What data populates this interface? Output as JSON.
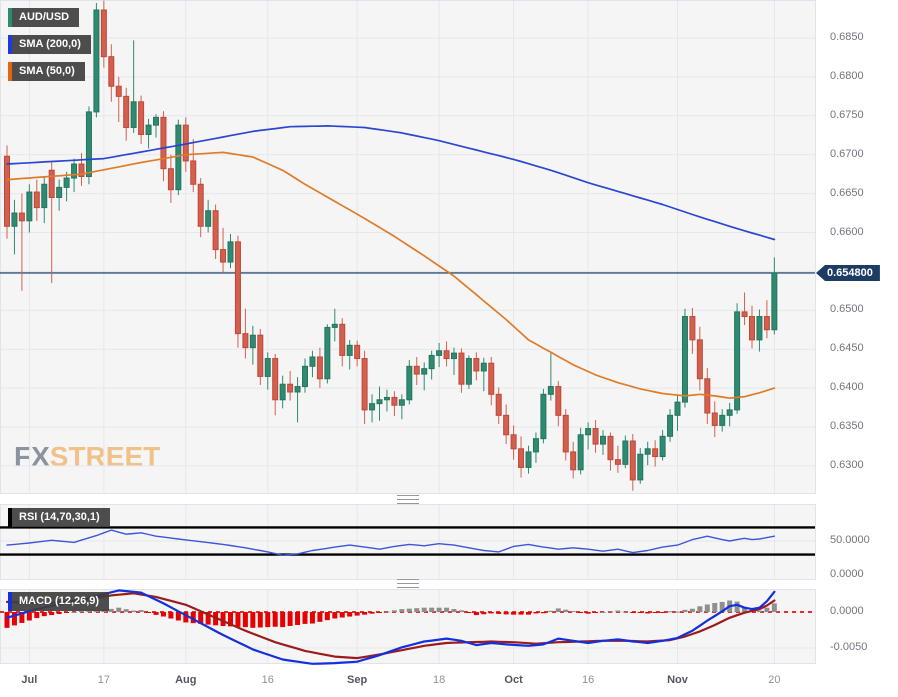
{
  "legend": {
    "symbol": "AUD/USD",
    "sma200": "SMA (200,0)",
    "sma50": "SMA (50,0)"
  },
  "rsi_label": "RSI (14,70,30,1)",
  "macd_label": "MACD (12,26,9)",
  "price_badge_label": "0.654800",
  "watermark": {
    "fx": "FX",
    "street": "STREET"
  },
  "colors": {
    "panel_bg": "#f5f5f6",
    "panel_border": "#e0e3e9",
    "grid": "#e5e7ea",
    "candle_up": "#2e8a70",
    "candle_up_border": "#25755f",
    "candle_down": "#d2604e",
    "candle_down_border": "#c24738",
    "sma200": "#2b46cf",
    "sma50": "#e07b28",
    "price_line": "#2a5076",
    "price_badge_bg": "#1d3c64",
    "rsi_line": "#3d55d8",
    "rsi_levels": "#000000",
    "macd_line": "#1330dd",
    "macd_signal": "#9c1b1b",
    "hist_positive": "#8f8f8f",
    "hist_negative": "#e80000",
    "zero_dash": "#e03030",
    "axis_text": "#70757e",
    "month_text": "#53575d",
    "watermark_fx": "#8d939e",
    "watermark_street": "#f0c189"
  },
  "chart_data": {
    "type": "candlestick",
    "symbol": "AUD/USD",
    "x_ticks": [
      [
        "Jul",
        3,
        1
      ],
      [
        "17",
        13,
        0
      ],
      [
        "Aug",
        24,
        1
      ],
      [
        "16",
        35,
        0
      ],
      [
        "Sep",
        47,
        1
      ],
      [
        "18",
        58,
        0
      ],
      [
        "Oct",
        68,
        1
      ],
      [
        "16",
        78,
        0
      ],
      [
        "Nov",
        90,
        1
      ],
      [
        "20",
        103,
        0
      ]
    ],
    "price_axis": {
      "labeled_ticks": [
        0.685,
        0.68,
        0.675,
        0.67,
        0.665,
        0.66,
        0.65,
        0.645,
        0.64,
        0.635,
        0.63
      ],
      "grid_ticks": [
        0.685,
        0.68,
        0.675,
        0.67,
        0.665,
        0.66,
        0.655,
        0.65,
        0.645,
        0.64,
        0.635,
        0.63
      ],
      "ylim": [
        0.6275,
        0.6905
      ],
      "last_price": 0.6548,
      "last_price_label": "0.654800"
    },
    "candles": [
      [
        0.6698,
        0.6712,
        0.6592,
        0.6608
      ],
      [
        0.6608,
        0.6642,
        0.6572,
        0.6625
      ],
      [
        0.6625,
        0.665,
        0.6525,
        0.6615
      ],
      [
        0.6615,
        0.6662,
        0.66,
        0.6652
      ],
      [
        0.6652,
        0.6668,
        0.6615,
        0.6632
      ],
      [
        0.6632,
        0.6672,
        0.6612,
        0.6662
      ],
      [
        0.668,
        0.669,
        0.6535,
        0.6645
      ],
      [
        0.6645,
        0.6668,
        0.6628,
        0.6658
      ],
      [
        0.6658,
        0.6678,
        0.664,
        0.667
      ],
      [
        0.667,
        0.6695,
        0.6652,
        0.6688
      ],
      [
        0.6688,
        0.6702,
        0.666,
        0.6672
      ],
      [
        0.6672,
        0.6762,
        0.6662,
        0.6755
      ],
      [
        0.6755,
        0.6895,
        0.6748,
        0.6886
      ],
      [
        0.6886,
        0.6898,
        0.6812,
        0.6826
      ],
      [
        0.6826,
        0.6842,
        0.6768,
        0.6788
      ],
      [
        0.6788,
        0.68,
        0.6742,
        0.6775
      ],
      [
        0.6775,
        0.6786,
        0.6718,
        0.6735
      ],
      [
        0.6735,
        0.6847,
        0.6728,
        0.6768
      ],
      [
        0.6768,
        0.6776,
        0.6714,
        0.6726
      ],
      [
        0.6726,
        0.6746,
        0.6708,
        0.6738
      ],
      [
        0.6738,
        0.6752,
        0.6722,
        0.6748
      ],
      [
        0.6748,
        0.6756,
        0.6666,
        0.6682
      ],
      [
        0.6682,
        0.67,
        0.6638,
        0.6655
      ],
      [
        0.6655,
        0.6745,
        0.6648,
        0.6738
      ],
      [
        0.6738,
        0.6748,
        0.6678,
        0.6692
      ],
      [
        0.6692,
        0.672,
        0.6652,
        0.6662
      ],
      [
        0.6662,
        0.667,
        0.6594,
        0.6608
      ],
      [
        0.6608,
        0.6642,
        0.66,
        0.6628
      ],
      [
        0.6628,
        0.6636,
        0.6566,
        0.6578
      ],
      [
        0.6578,
        0.6606,
        0.6548,
        0.6562
      ],
      [
        0.6562,
        0.6598,
        0.6554,
        0.6588
      ],
      [
        0.6588,
        0.6596,
        0.6452,
        0.647
      ],
      [
        0.647,
        0.6502,
        0.6438,
        0.6452
      ],
      [
        0.6452,
        0.648,
        0.643,
        0.6468
      ],
      [
        0.6468,
        0.6476,
        0.6404,
        0.6415
      ],
      [
        0.6415,
        0.6446,
        0.6398,
        0.6438
      ],
      [
        0.6438,
        0.6444,
        0.6365,
        0.6385
      ],
      [
        0.6385,
        0.6416,
        0.6374,
        0.6405
      ],
      [
        0.6405,
        0.6422,
        0.6384,
        0.6395
      ],
      [
        0.6395,
        0.6414,
        0.6356,
        0.6402
      ],
      [
        0.6402,
        0.6438,
        0.6394,
        0.6428
      ],
      [
        0.6428,
        0.6448,
        0.6414,
        0.644
      ],
      [
        0.644,
        0.6452,
        0.64,
        0.6412
      ],
      [
        0.6412,
        0.6482,
        0.6406,
        0.6478
      ],
      [
        0.6478,
        0.6502,
        0.646,
        0.6482
      ],
      [
        0.6482,
        0.649,
        0.6428,
        0.6442
      ],
      [
        0.6442,
        0.6462,
        0.6424,
        0.6455
      ],
      [
        0.6455,
        0.6461,
        0.6428,
        0.6438
      ],
      [
        0.6438,
        0.6448,
        0.6354,
        0.6372
      ],
      [
        0.6372,
        0.6392,
        0.6356,
        0.638
      ],
      [
        0.638,
        0.6402,
        0.6358,
        0.6385
      ],
      [
        0.6385,
        0.6398,
        0.637,
        0.6388
      ],
      [
        0.6388,
        0.6396,
        0.6364,
        0.6378
      ],
      [
        0.6378,
        0.6392,
        0.636,
        0.6385
      ],
      [
        0.6385,
        0.6436,
        0.6379,
        0.6428
      ],
      [
        0.6428,
        0.644,
        0.6404,
        0.6418
      ],
      [
        0.6418,
        0.6433,
        0.6397,
        0.6425
      ],
      [
        0.6425,
        0.6448,
        0.6411,
        0.6442
      ],
      [
        0.6442,
        0.6458,
        0.6427,
        0.6448
      ],
      [
        0.6448,
        0.646,
        0.6428,
        0.6438
      ],
      [
        0.6438,
        0.6452,
        0.6417,
        0.6445
      ],
      [
        0.6445,
        0.6451,
        0.6394,
        0.6405
      ],
      [
        0.6405,
        0.6442,
        0.6399,
        0.6438
      ],
      [
        0.6438,
        0.6446,
        0.641,
        0.6422
      ],
      [
        0.6422,
        0.6439,
        0.6396,
        0.6432
      ],
      [
        0.6432,
        0.644,
        0.6378,
        0.6392
      ],
      [
        0.6392,
        0.6401,
        0.6354,
        0.6365
      ],
      [
        0.6365,
        0.6379,
        0.6328,
        0.634
      ],
      [
        0.634,
        0.6352,
        0.6308,
        0.6322
      ],
      [
        0.6322,
        0.6338,
        0.6285,
        0.6298
      ],
      [
        0.6298,
        0.6326,
        0.629,
        0.6318
      ],
      [
        0.6318,
        0.6343,
        0.6304,
        0.6335
      ],
      [
        0.6335,
        0.6399,
        0.6329,
        0.6392
      ],
      [
        0.6392,
        0.6445,
        0.6384,
        0.6402
      ],
      [
        0.6402,
        0.6409,
        0.6351,
        0.6365
      ],
      [
        0.6365,
        0.6373,
        0.6307,
        0.6318
      ],
      [
        0.6318,
        0.6331,
        0.6284,
        0.6295
      ],
      [
        0.6295,
        0.6349,
        0.6289,
        0.634
      ],
      [
        0.634,
        0.6356,
        0.6321,
        0.6348
      ],
      [
        0.6348,
        0.6359,
        0.6317,
        0.6328
      ],
      [
        0.6328,
        0.6346,
        0.6314,
        0.6338
      ],
      [
        0.6338,
        0.6343,
        0.6294,
        0.6308
      ],
      [
        0.6308,
        0.6326,
        0.6291,
        0.6302
      ],
      [
        0.6302,
        0.6339,
        0.6297,
        0.6332
      ],
      [
        0.6332,
        0.6341,
        0.6268,
        0.6282
      ],
      [
        0.6282,
        0.6323,
        0.6277,
        0.6315
      ],
      [
        0.6315,
        0.6331,
        0.6301,
        0.6322
      ],
      [
        0.6322,
        0.6333,
        0.6299,
        0.6312
      ],
      [
        0.6312,
        0.6346,
        0.6307,
        0.6338
      ],
      [
        0.6338,
        0.6373,
        0.6331,
        0.6365
      ],
      [
        0.6365,
        0.639,
        0.6345,
        0.6382
      ],
      [
        0.6382,
        0.6502,
        0.6375,
        0.6492
      ],
      [
        0.6492,
        0.6503,
        0.6444,
        0.6462
      ],
      [
        0.6462,
        0.6479,
        0.6397,
        0.6412
      ],
      [
        0.6412,
        0.6426,
        0.6354,
        0.6368
      ],
      [
        0.6368,
        0.6383,
        0.6337,
        0.6352
      ],
      [
        0.6352,
        0.6373,
        0.6344,
        0.6365
      ],
      [
        0.6365,
        0.6381,
        0.6351,
        0.6372
      ],
      [
        0.6372,
        0.6509,
        0.6367,
        0.6498
      ],
      [
        0.6498,
        0.6523,
        0.6481,
        0.6492
      ],
      [
        0.6492,
        0.6506,
        0.6451,
        0.6462
      ],
      [
        0.6462,
        0.6501,
        0.6447,
        0.6492
      ],
      [
        0.6492,
        0.6513,
        0.6464,
        0.6475
      ],
      [
        0.6475,
        0.6568,
        0.6469,
        0.6548
      ]
    ],
    "sma200": {
      "label": "SMA (200,0)",
      "keypoints": [
        [
          0,
          0.6688
        ],
        [
          13,
          0.6695
        ],
        [
          23,
          0.6712
        ],
        [
          33,
          0.673
        ],
        [
          38,
          0.6736
        ],
        [
          43,
          0.6737
        ],
        [
          48,
          0.6735
        ],
        [
          53,
          0.6728
        ],
        [
          58,
          0.6718
        ],
        [
          63,
          0.6706
        ],
        [
          68,
          0.6694
        ],
        [
          73,
          0.668
        ],
        [
          78,
          0.6664
        ],
        [
          83,
          0.665
        ],
        [
          88,
          0.6636
        ],
        [
          93,
          0.662
        ],
        [
          98,
          0.6605
        ],
        [
          103,
          0.6591
        ]
      ]
    },
    "sma50": {
      "label": "SMA (50,0)",
      "keypoints": [
        [
          0,
          0.6668
        ],
        [
          10,
          0.6675
        ],
        [
          18,
          0.669
        ],
        [
          24,
          0.67
        ],
        [
          29,
          0.6703
        ],
        [
          33,
          0.6697
        ],
        [
          37,
          0.668
        ],
        [
          40,
          0.6662
        ],
        [
          44,
          0.664
        ],
        [
          48,
          0.6618
        ],
        [
          52,
          0.6595
        ],
        [
          56,
          0.657
        ],
        [
          60,
          0.6544
        ],
        [
          64,
          0.6512
        ],
        [
          67,
          0.6488
        ],
        [
          70,
          0.6462
        ],
        [
          73,
          0.6446
        ],
        [
          76,
          0.643
        ],
        [
          79,
          0.6417
        ],
        [
          82,
          0.6407
        ],
        [
          85,
          0.6399
        ],
        [
          88,
          0.6393
        ],
        [
          91,
          0.639
        ],
        [
          93,
          0.6392
        ],
        [
          95,
          0.639
        ],
        [
          97,
          0.6387
        ],
        [
          99,
          0.6389
        ],
        [
          101,
          0.6394
        ],
        [
          103,
          0.64
        ]
      ]
    },
    "rsi": {
      "label": "RSI (14,70,30,1)",
      "upper_level": 70,
      "lower_level": 30,
      "axis_labels": [
        50,
        0
      ],
      "keypoints": [
        [
          0,
          44
        ],
        [
          3,
          47
        ],
        [
          6,
          51
        ],
        [
          9,
          48
        ],
        [
          12,
          58
        ],
        [
          14,
          66
        ],
        [
          16,
          60
        ],
        [
          18,
          62
        ],
        [
          20,
          57
        ],
        [
          23,
          53
        ],
        [
          26,
          49
        ],
        [
          29,
          45
        ],
        [
          32,
          40
        ],
        [
          35,
          34
        ],
        [
          37,
          29
        ],
        [
          39,
          31
        ],
        [
          41,
          36
        ],
        [
          44,
          41
        ],
        [
          46,
          44
        ],
        [
          48,
          41
        ],
        [
          50,
          38
        ],
        [
          52,
          42
        ],
        [
          54,
          45
        ],
        [
          56,
          43
        ],
        [
          58,
          46
        ],
        [
          60,
          44
        ],
        [
          62,
          40
        ],
        [
          64,
          36
        ],
        [
          66,
          34
        ],
        [
          68,
          42
        ],
        [
          70,
          45
        ],
        [
          72,
          41
        ],
        [
          74,
          38
        ],
        [
          76,
          40
        ],
        [
          78,
          38
        ],
        [
          80,
          35
        ],
        [
          82,
          38
        ],
        [
          84,
          33
        ],
        [
          86,
          36
        ],
        [
          88,
          41
        ],
        [
          90,
          44
        ],
        [
          92,
          52
        ],
        [
          94,
          57
        ],
        [
          96,
          52
        ],
        [
          97,
          50
        ],
        [
          99,
          54
        ],
        [
          100,
          52
        ],
        [
          101,
          53
        ],
        [
          103,
          57
        ]
      ]
    },
    "macd": {
      "label": "MACD (12,26,9)",
      "axis_labels": [
        0,
        -0.005
      ],
      "histogram": "macd_minus_signal",
      "macd_keypoints": [
        [
          0,
          -0.0008
        ],
        [
          4,
          0.0004
        ],
        [
          8,
          0.0013
        ],
        [
          12,
          0.0022
        ],
        [
          15,
          0.003
        ],
        [
          18,
          0.0027
        ],
        [
          21,
          0.0012
        ],
        [
          25,
          -0.001
        ],
        [
          29,
          -0.0032
        ],
        [
          33,
          -0.0052
        ],
        [
          37,
          -0.0066
        ],
        [
          41,
          -0.0072
        ],
        [
          44,
          -0.0071
        ],
        [
          47,
          -0.0069
        ],
        [
          50,
          -0.006
        ],
        [
          53,
          -0.0049
        ],
        [
          56,
          -0.0041
        ],
        [
          59,
          -0.0037
        ],
        [
          61,
          -0.004
        ],
        [
          63,
          -0.0046
        ],
        [
          65,
          -0.0043
        ],
        [
          67,
          -0.0045
        ],
        [
          70,
          -0.0047
        ],
        [
          72,
          -0.0045
        ],
        [
          74,
          -0.0037
        ],
        [
          76,
          -0.004
        ],
        [
          78,
          -0.0043
        ],
        [
          80,
          -0.004
        ],
        [
          82,
          -0.0038
        ],
        [
          84,
          -0.0041
        ],
        [
          86,
          -0.0043
        ],
        [
          88,
          -0.004
        ],
        [
          90,
          -0.0036
        ],
        [
          92,
          -0.0026
        ],
        [
          94,
          -0.0012
        ],
        [
          96,
          0.0001
        ],
        [
          97,
          0.0008
        ],
        [
          98,
          0.001
        ],
        [
          99,
          0.0006
        ],
        [
          100,
          0.0004
        ],
        [
          101,
          0.0006
        ],
        [
          102,
          0.0015
        ],
        [
          103,
          0.0028
        ]
      ],
      "signal_keypoints": [
        [
          0,
          0.0014
        ],
        [
          5,
          0.0012
        ],
        [
          10,
          0.0016
        ],
        [
          14,
          0.0023
        ],
        [
          17,
          0.0026
        ],
        [
          20,
          0.0021
        ],
        [
          24,
          0.001
        ],
        [
          28,
          -0.0008
        ],
        [
          32,
          -0.0026
        ],
        [
          36,
          -0.0042
        ],
        [
          40,
          -0.0054
        ],
        [
          44,
          -0.0062
        ],
        [
          47,
          -0.0064
        ],
        [
          50,
          -0.0059
        ],
        [
          53,
          -0.0053
        ],
        [
          56,
          -0.0047
        ],
        [
          59,
          -0.0043
        ],
        [
          62,
          -0.0042
        ],
        [
          65,
          -0.0041
        ],
        [
          68,
          -0.0042
        ],
        [
          71,
          -0.0044
        ],
        [
          74,
          -0.0042
        ],
        [
          77,
          -0.0041
        ],
        [
          80,
          -0.004
        ],
        [
          83,
          -0.004
        ],
        [
          86,
          -0.0041
        ],
        [
          89,
          -0.0039
        ],
        [
          91,
          -0.0034
        ],
        [
          93,
          -0.0027
        ],
        [
          95,
          -0.0018
        ],
        [
          97,
          -0.0008
        ],
        [
          99,
          -0.0001
        ],
        [
          101,
          0.0004
        ],
        [
          102,
          0.0009
        ],
        [
          103,
          0.0016
        ]
      ]
    }
  }
}
